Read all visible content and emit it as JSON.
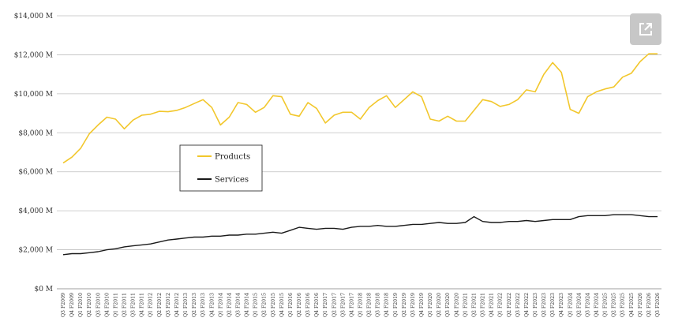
{
  "chart_data": {
    "type": "line",
    "ylim": [
      0,
      14000
    ],
    "y_ticks": [
      {
        "value": 0,
        "label": "$0 M"
      },
      {
        "value": 2000,
        "label": "$2,000 M"
      },
      {
        "value": 4000,
        "label": "$4,000 M"
      },
      {
        "value": 6000,
        "label": "$6,000 M"
      },
      {
        "value": 8000,
        "label": "$8,000 M"
      },
      {
        "value": 10000,
        "label": "$10,000 M"
      },
      {
        "value": 12000,
        "label": "$12,000 M"
      },
      {
        "value": 14000,
        "label": "$14,000 M"
      }
    ],
    "categories": [
      "Q3 F2009",
      "Q4 F2009",
      "Q1 F2010",
      "Q2 F2010",
      "Q3 F2010",
      "Q4 F2010",
      "Q1 F2011",
      "Q2 F2011",
      "Q3 F2011",
      "Q4 F2011",
      "Q1 F2012",
      "Q2 F2012",
      "Q3 F2012",
      "Q4 F2012",
      "Q1 F2013",
      "Q2 F2013",
      "Q3 F2013",
      "Q4 F2013",
      "Q1 F2014",
      "Q2 F2014",
      "Q3 F2014",
      "Q4 F2014",
      "Q1 F2015",
      "Q2 F2015",
      "Q3 F2015",
      "Q4 F2015",
      "Q1 F2016",
      "Q2 F2016",
      "Q3 F2016",
      "Q4 F2016",
      "Q1 F2017",
      "Q2 F2017",
      "Q3 F2017",
      "Q4 F2017",
      "Q1 F2018",
      "Q2 F2018",
      "Q3 F2018",
      "Q4 F2018",
      "Q1 F2019",
      "Q2 F2019",
      "Q3 F2019",
      "Q4 F2019",
      "Q1 F2020",
      "Q2 F2020",
      "Q3 F2020",
      "Q4 F2020",
      "Q1 F2021",
      "Q2 F2021",
      "Q3 F2021",
      "Q4 F2021",
      "Q1 F2022",
      "Q2 F2022",
      "Q3 F2022",
      "Q4 F2022",
      "Q1 F2023",
      "Q2 F2023",
      "Q3 F2023",
      "Q4 F2023",
      "Q1 F2024",
      "Q2 F2024",
      "Q3 F2024",
      "Q4 F2024",
      "Q1 F2025",
      "Q2 F2025",
      "Q3 F2025",
      "Q4 F2025",
      "Q1 F2026",
      "Q2 F2026",
      "Q3 F2026"
    ],
    "series": [
      {
        "name": "Products",
        "color": "#f2c72c",
        "values": [
          6450,
          6750,
          7200,
          7950,
          8400,
          8800,
          8700,
          8200,
          8650,
          8900,
          8950,
          9100,
          9080,
          9150,
          9300,
          9500,
          9700,
          9300,
          8400,
          8800,
          9550,
          9450,
          9050,
          9300,
          9900,
          9850,
          8950,
          8850,
          9550,
          9250,
          8500,
          8900,
          9050,
          9050,
          8700,
          9300,
          9650,
          9900,
          9300,
          9700,
          10100,
          9850,
          8700,
          8600,
          8850,
          8600,
          8600,
          9150,
          9700,
          9600,
          9350,
          9450,
          9700,
          10200,
          10100,
          11000,
          11600,
          11100,
          9200,
          9000,
          9850,
          10100,
          10250,
          10350,
          10850,
          11050,
          11650,
          12050,
          12050
        ]
      },
      {
        "name": "Services",
        "color": "#1a1a1a",
        "values": [
          1750,
          1800,
          1800,
          1850,
          1900,
          2000,
          2050,
          2150,
          2200,
          2250,
          2300,
          2400,
          2500,
          2550,
          2600,
          2650,
          2650,
          2700,
          2700,
          2750,
          2750,
          2800,
          2800,
          2850,
          2900,
          2850,
          3000,
          3150,
          3100,
          3050,
          3100,
          3100,
          3050,
          3150,
          3200,
          3200,
          3250,
          3200,
          3200,
          3250,
          3300,
          3300,
          3350,
          3400,
          3350,
          3350,
          3400,
          3700,
          3450,
          3400,
          3400,
          3450,
          3450,
          3500,
          3450,
          3500,
          3550,
          3550,
          3550,
          3700,
          3750,
          3750,
          3750,
          3800,
          3800,
          3800,
          3750,
          3700,
          3700
        ]
      }
    ],
    "grid": true,
    "legend_position": "middle-left",
    "legend": [
      {
        "label": "Products",
        "color": "#f2c72c"
      },
      {
        "label": "Services",
        "color": "#1a1a1a"
      }
    ]
  },
  "toolbar": {
    "expand_icon": "external-link-icon",
    "expand_bg": "#c7c7c7"
  }
}
